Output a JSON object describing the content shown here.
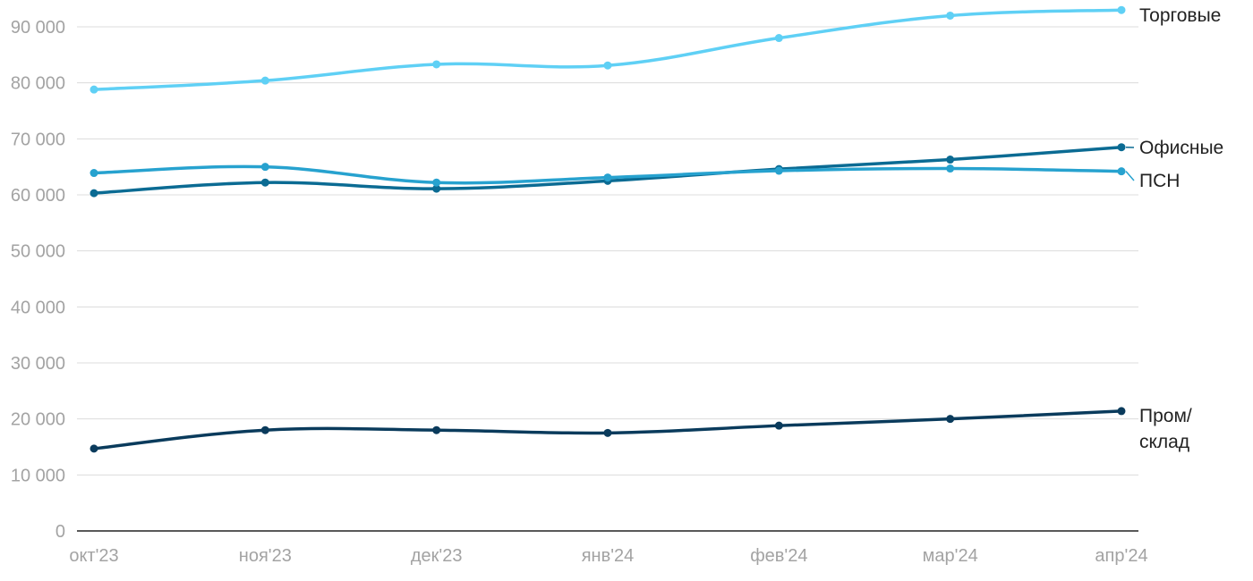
{
  "chart_data": {
    "type": "line",
    "title": "",
    "xlabel": "",
    "ylabel": "",
    "categories": [
      "окт'23",
      "ноя'23",
      "дек'23",
      "янв'24",
      "фев'24",
      "мар'24",
      "апр'24"
    ],
    "y_ticks": [
      "0",
      "10 000",
      "20 000",
      "30 000",
      "40 000",
      "50 000",
      "60 000",
      "70 000",
      "80 000",
      "90 000"
    ],
    "ylim": [
      0,
      95000
    ],
    "grid": true,
    "legend": "direct labels at right end of each line",
    "series": [
      {
        "name": "Торговые",
        "label_lines": [
          "Торговые"
        ],
        "color": "#5fd0f5",
        "values": [
          78800,
          80400,
          83300,
          83100,
          88000,
          92000,
          93000
        ]
      },
      {
        "name": "Офисные",
        "label_lines": [
          "Офисные"
        ],
        "color": "#0b6b93",
        "values": [
          60300,
          62200,
          61100,
          62500,
          64600,
          66300,
          68500
        ]
      },
      {
        "name": "ПСН",
        "label_lines": [
          "ПСН"
        ],
        "color": "#27a2cf",
        "values": [
          63900,
          65000,
          62200,
          63100,
          64300,
          64700,
          64200
        ]
      },
      {
        "name": "Пром/склад",
        "label_lines": [
          "Пром/",
          "склад"
        ],
        "color": "#0a3b5c",
        "values": [
          14700,
          18000,
          18000,
          17500,
          18800,
          20000,
          21400
        ]
      }
    ]
  }
}
